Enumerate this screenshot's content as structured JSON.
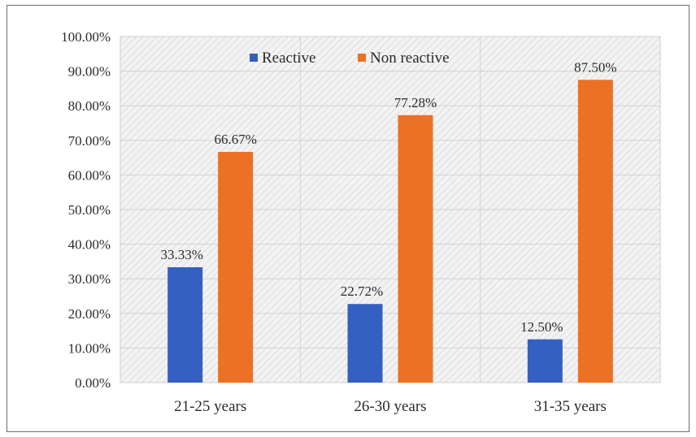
{
  "chart_data": {
    "type": "bar",
    "categories": [
      "21-25 years",
      "26-30 years",
      "31-35 years"
    ],
    "series": [
      {
        "name": "Reactive",
        "color": "#3461c1",
        "values": [
          33.33,
          22.72,
          12.5
        ],
        "labels": [
          "33.33%",
          "22.72%",
          "12.50%"
        ]
      },
      {
        "name": "Non reactive",
        "color": "#ec7124",
        "values": [
          66.67,
          77.28,
          87.5
        ],
        "labels": [
          "66.67%",
          "77.28%",
          "87.50%"
        ]
      }
    ],
    "yticks": [
      "0.00%",
      "10.00%",
      "20.00%",
      "30.00%",
      "40.00%",
      "50.00%",
      "60.00%",
      "70.00%",
      "80.00%",
      "90.00%",
      "100.00%"
    ],
    "ylim": [
      0,
      100
    ],
    "ymajor": 10,
    "legend_position": "top-center",
    "grid": true,
    "plot_background": "hatched-gray"
  }
}
